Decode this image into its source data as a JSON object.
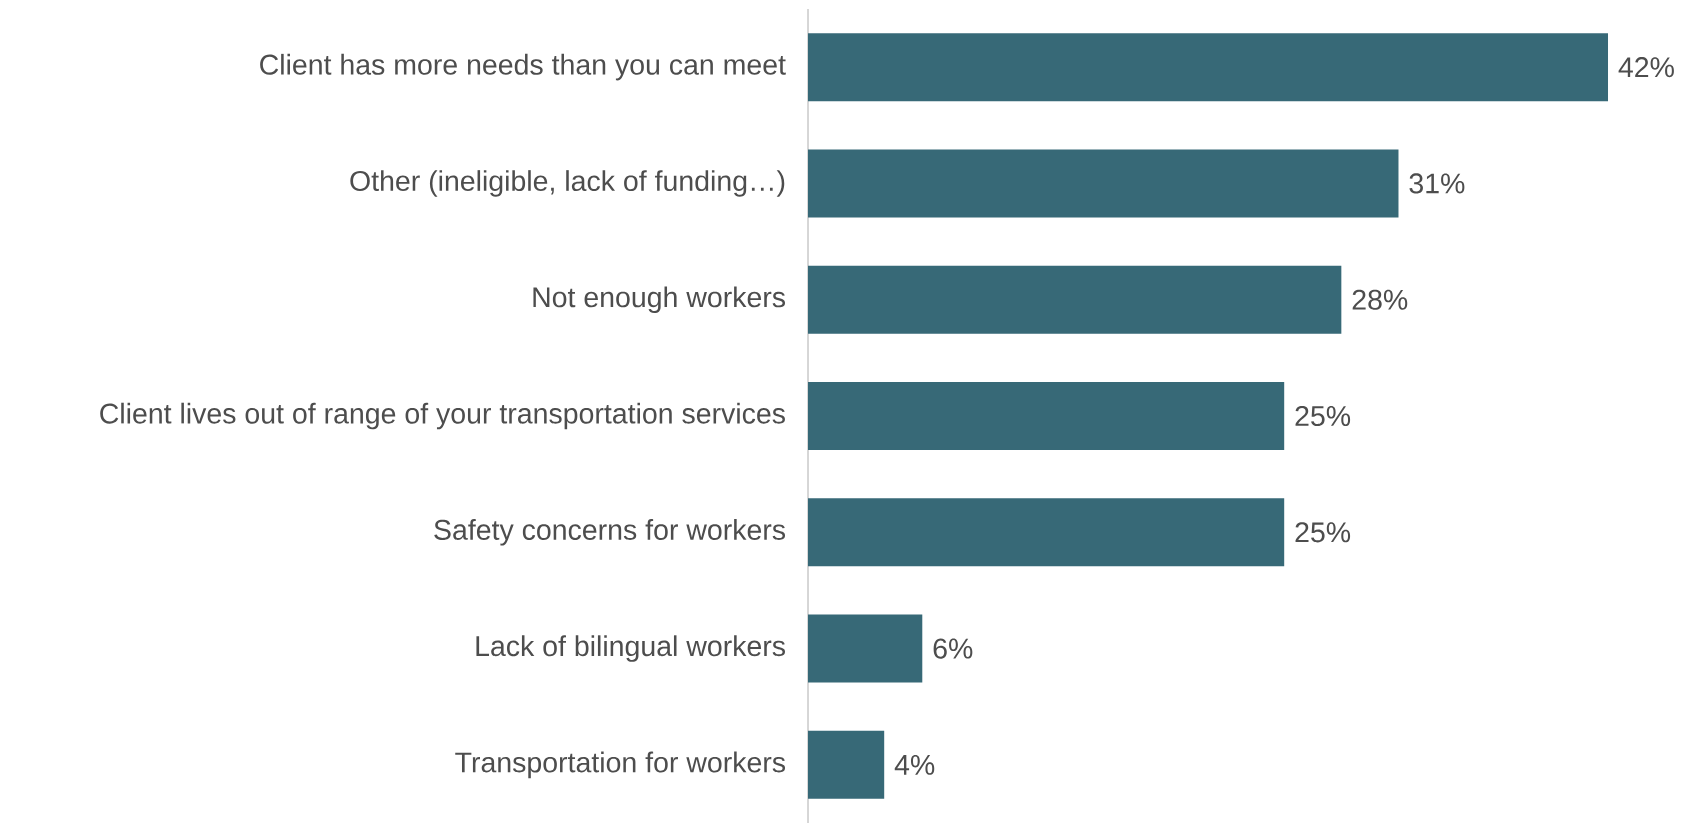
{
  "chart_data": {
    "type": "bar",
    "orientation": "horizontal",
    "categories": [
      "Client has more needs than you can meet",
      "Other (ineligible, lack of funding…)",
      "Not enough workers",
      "Client lives out of range of your transportation services",
      "Safety concerns for workers",
      "Lack of bilingual workers",
      "Transportation for workers"
    ],
    "values": [
      42,
      31,
      28,
      25,
      25,
      6,
      4
    ],
    "value_labels": [
      "42%",
      "31%",
      "28%",
      "25%",
      "25%",
      "6%",
      "4%"
    ],
    "color": "#376977",
    "grid": false
  }
}
